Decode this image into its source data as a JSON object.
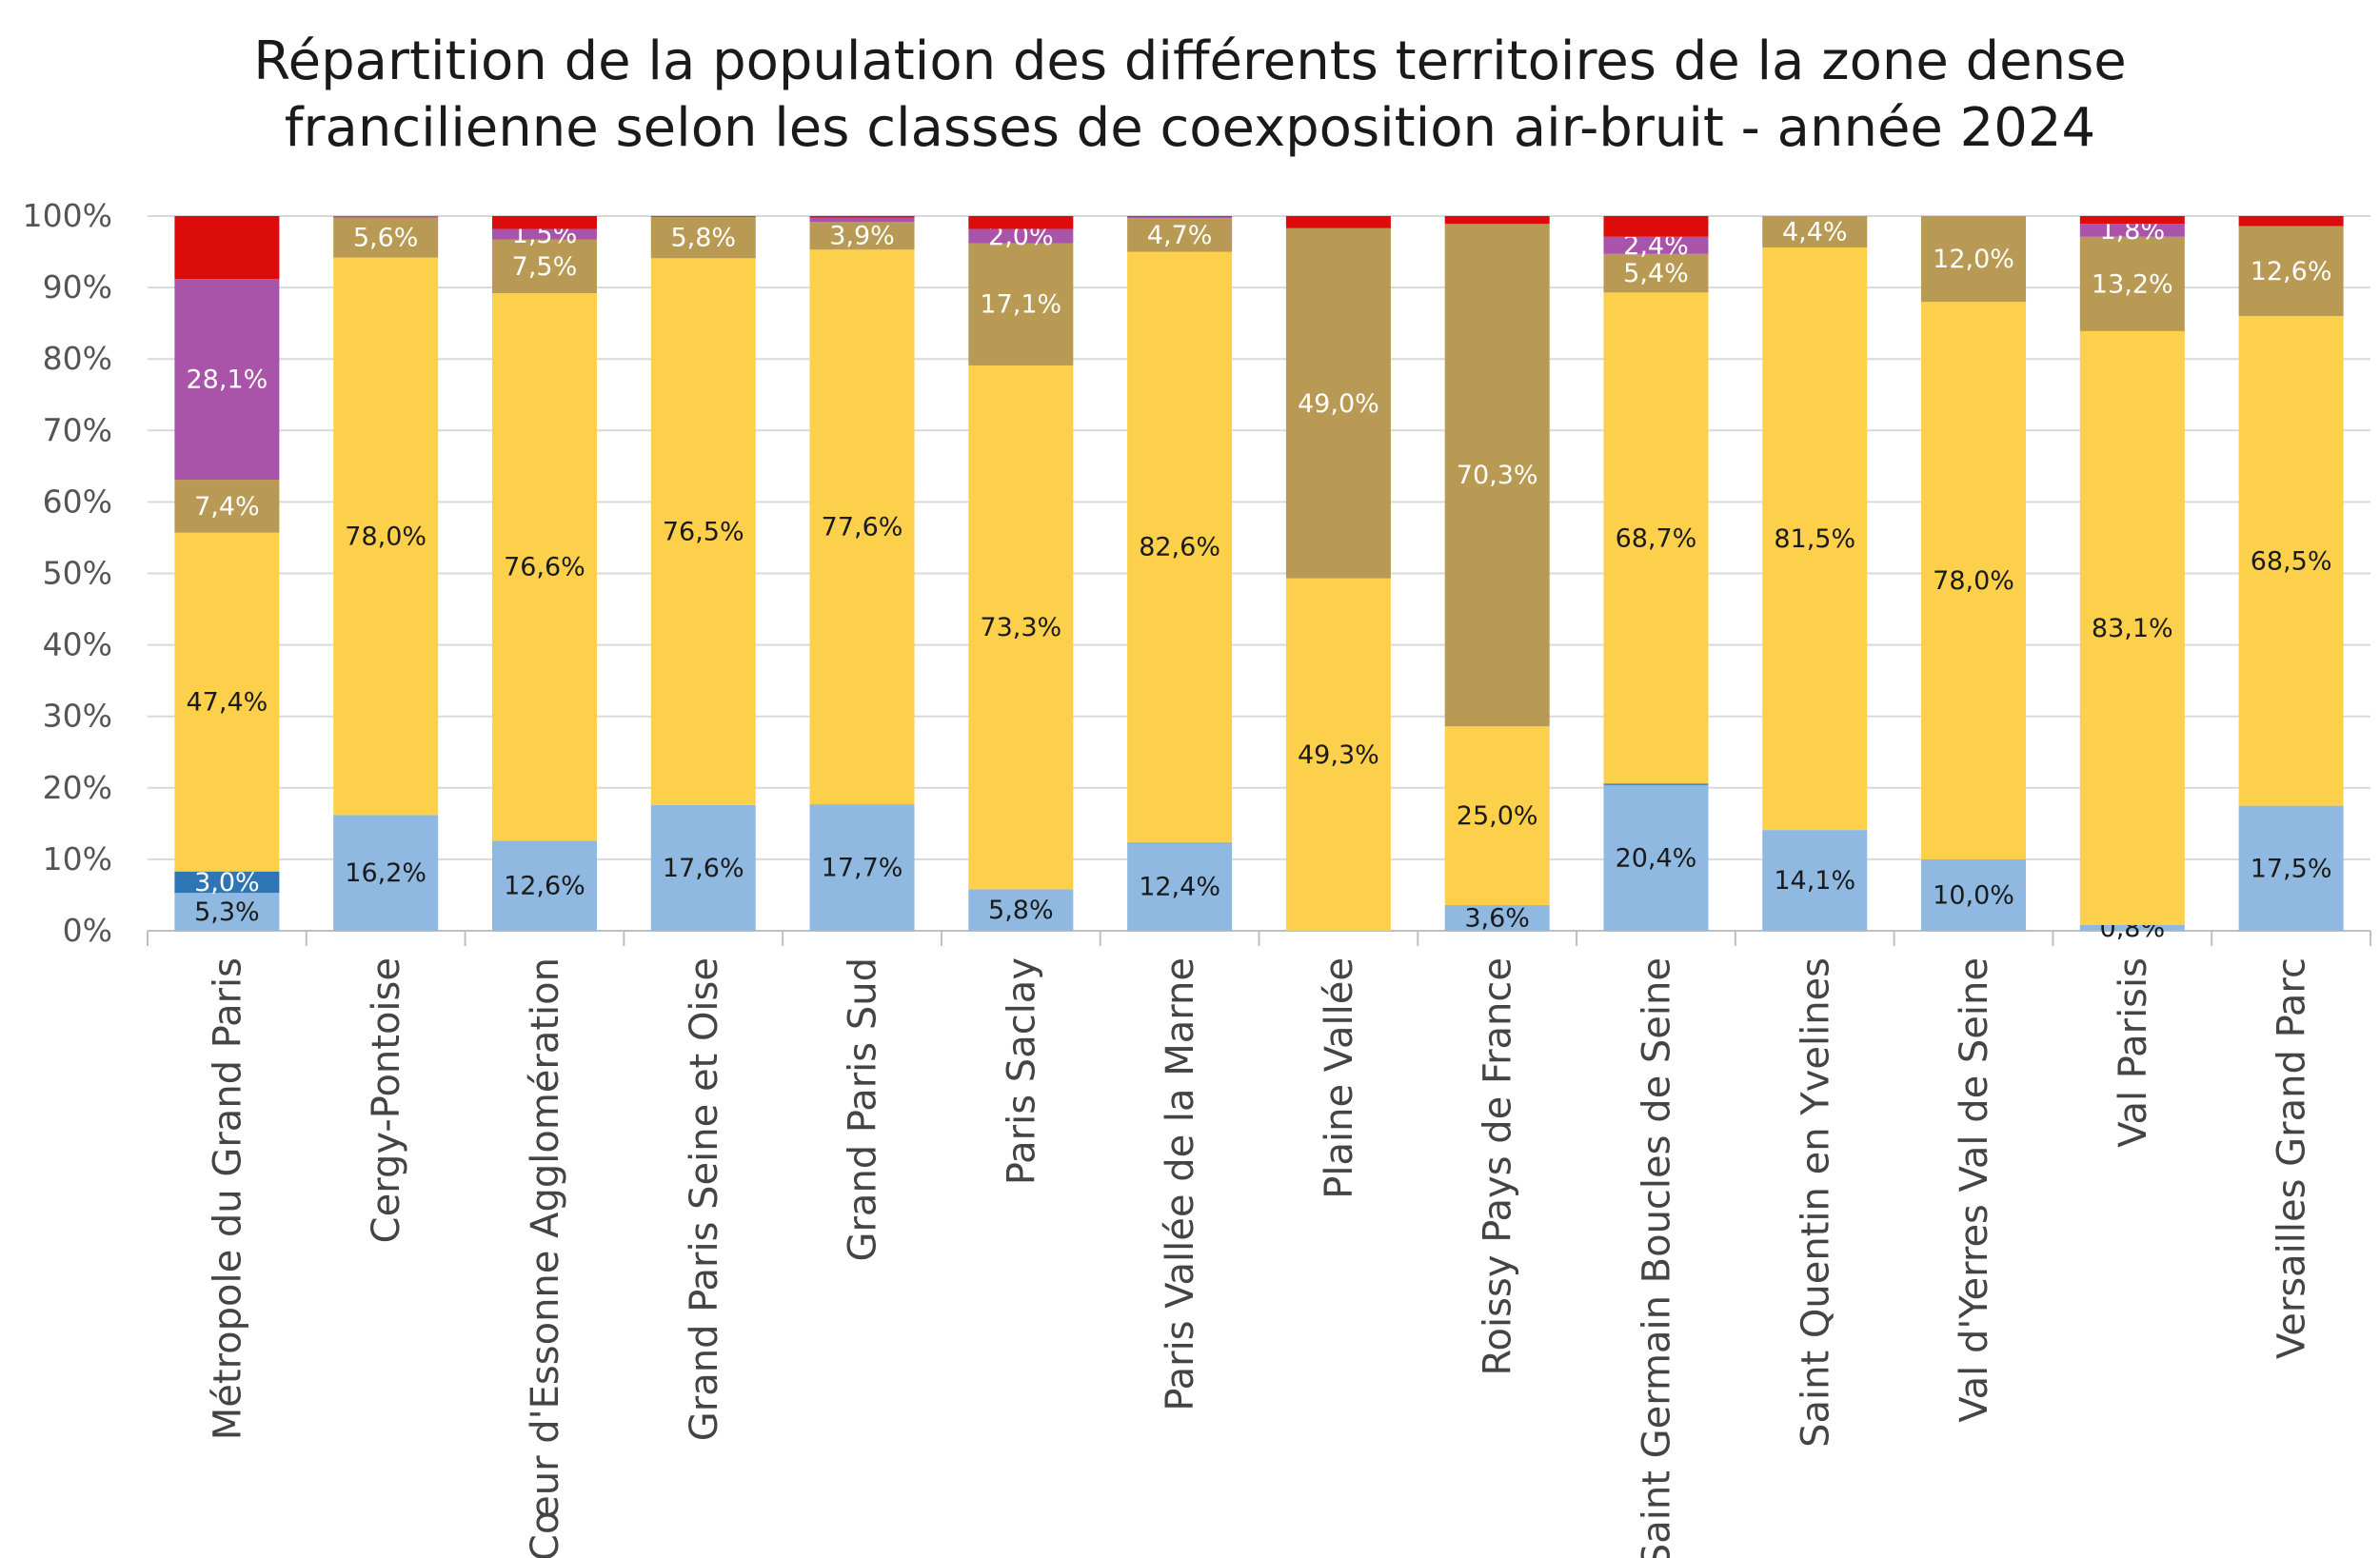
{
  "chart_data": {
    "type": "bar",
    "stacked": true,
    "title_lines": [
      "Répartition de la population des différents territoires de la zone dense",
      "francilienne selon les classes de coexposition air-bruit - année 2024"
    ],
    "xlabel": "",
    "ylabel": "",
    "ylim": [
      0,
      100
    ],
    "yticks": [
      "0%",
      "10%",
      "20%",
      "30%",
      "40%",
      "50%",
      "60%",
      "70%",
      "80%",
      "90%",
      "100%"
    ],
    "grid": true,
    "legend": "none",
    "categories": [
      "Métropole du Grand Paris",
      "Cergy-Pontoise",
      "Cœur d'Essonne Agglomération",
      "Grand Paris Seine et Oise",
      "Grand Paris Sud",
      "Paris Saclay",
      "Paris Vallée de la Marne",
      "Plaine Vallée",
      "Roissy Pays de France",
      "Saint Germain Boucles de Seine",
      "Saint Quentin en Yvelines",
      "Val d'Yerres Val de Seine",
      "Val Parisis",
      "Versailles Grand Parc"
    ],
    "series": [
      {
        "color": "#8fb9e0",
        "label_color": "#1a1a1a",
        "values": [
          5.3,
          16.2,
          12.6,
          17.6,
          17.7,
          5.8,
          12.4,
          0.0,
          3.6,
          20.4,
          14.1,
          10.0,
          0.8,
          17.5
        ],
        "labels": [
          "5,3%",
          "16,2%",
          "12,6%",
          "17,6%",
          "17,7%",
          "5,8%",
          "12,4%",
          "",
          "3,6%",
          "20,4%",
          "14,1%",
          "10,0%",
          "0,8%",
          "17,5%"
        ]
      },
      {
        "color": "#2e75b6",
        "label_color": "#ffffff",
        "values": [
          3.0,
          0,
          0,
          0,
          0,
          0,
          0,
          0,
          0,
          0.2,
          0,
          0,
          0,
          0
        ],
        "labels": [
          "3,0%",
          "",
          "",
          "",
          "",
          "",
          "",
          "",
          "",
          "",
          "",
          "",
          "",
          ""
        ]
      },
      {
        "color": "#fdd04b",
        "label_color": "#1a1a1a",
        "values": [
          47.4,
          78.0,
          76.6,
          76.5,
          77.6,
          73.3,
          82.6,
          49.3,
          25.0,
          68.7,
          81.5,
          78.0,
          83.1,
          68.5
        ],
        "labels": [
          "47,4%",
          "78,0%",
          "76,6%",
          "76,5%",
          "77,6%",
          "73,3%",
          "82,6%",
          "49,3%",
          "25,0%",
          "68,7%",
          "81,5%",
          "78,0%",
          "83,1%",
          "68,5%"
        ]
      },
      {
        "color": "#b89a55",
        "label_color": "#ffffff",
        "values": [
          7.4,
          5.6,
          7.5,
          5.8,
          3.9,
          17.1,
          4.7,
          49.0,
          70.3,
          5.4,
          4.4,
          12.0,
          13.2,
          12.6
        ],
        "labels": [
          "7,4%",
          "5,6%",
          "7,5%",
          "5,8%",
          "3,9%",
          "17,1%",
          "4,7%",
          "49,0%",
          "70,3%",
          "5,4%",
          "4,4%",
          "12,0%",
          "13,2%",
          "12,6%"
        ]
      },
      {
        "color": "#a954a8",
        "label_color": "#ffffff",
        "values": [
          28.1,
          0.2,
          1.5,
          0,
          0.6,
          2.0,
          0.2,
          0,
          0,
          2.4,
          0,
          0,
          1.8,
          0
        ],
        "labels": [
          "28,1%",
          "",
          "1,5%",
          "",
          "",
          "2,0%",
          "",
          "",
          "",
          "2,4%",
          "",
          "",
          "1,8%",
          ""
        ]
      },
      {
        "color": "#dd0c0c",
        "label_color": "#ffffff",
        "values": [
          8.8,
          0,
          1.8,
          0.1,
          0.2,
          1.8,
          0.1,
          1.7,
          1.1,
          2.9,
          0,
          0,
          1.1,
          1.4
        ],
        "labels": [
          "",
          "",
          "",
          "",
          "",
          "",
          "",
          "",
          "",
          "",
          "",
          "",
          "",
          ""
        ]
      }
    ]
  }
}
